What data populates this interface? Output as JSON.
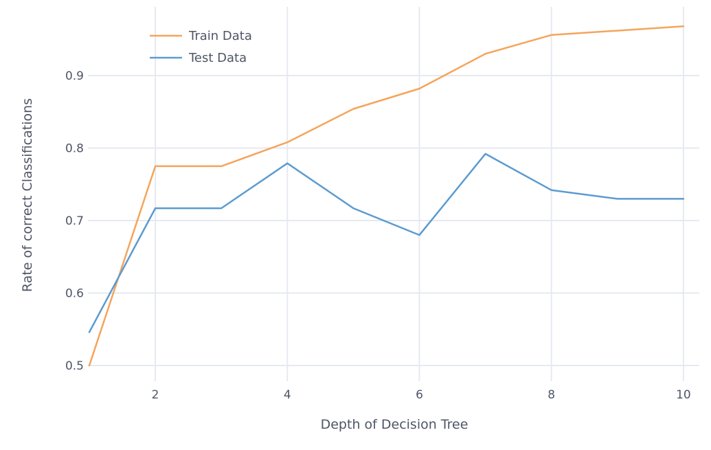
{
  "chart_data": {
    "type": "line",
    "title": "",
    "xlabel": "Depth of Decision Tree",
    "ylabel": "Rate of correct Classifications",
    "x": [
      1,
      2,
      3,
      4,
      5,
      6,
      7,
      8,
      9,
      10
    ],
    "series": [
      {
        "name": "Train Data",
        "color": "#f5a45a",
        "values": [
          0.5,
          0.775,
          0.775,
          0.808,
          0.854,
          0.882,
          0.93,
          0.956,
          0.962,
          0.968
        ]
      },
      {
        "name": "Test Data",
        "color": "#5b9bd0",
        "values": [
          0.546,
          0.717,
          0.717,
          0.779,
          0.717,
          0.68,
          0.792,
          0.742,
          0.73,
          0.73
        ]
      }
    ],
    "xticks": [
      2,
      4,
      6,
      8,
      10
    ],
    "yticks": [
      0.5,
      0.6,
      0.7,
      0.8,
      0.9
    ],
    "xlim": [
      1,
      10
    ],
    "ylim": [
      0.5,
      0.97
    ],
    "grid": true,
    "legend_position": "top-left inside"
  },
  "axes": {
    "xlabel": "Depth of Decision Tree",
    "ylabel": "Rate of correct Classifications",
    "xtick_labels": [
      "2",
      "4",
      "6",
      "8",
      "10"
    ],
    "ytick_labels": [
      "0.5",
      "0.6",
      "0.7",
      "0.8",
      "0.9"
    ]
  },
  "legend": {
    "items": [
      {
        "label": "Train Data",
        "color": "#f5a45a"
      },
      {
        "label": "Test Data",
        "color": "#5b9bd0"
      }
    ]
  }
}
